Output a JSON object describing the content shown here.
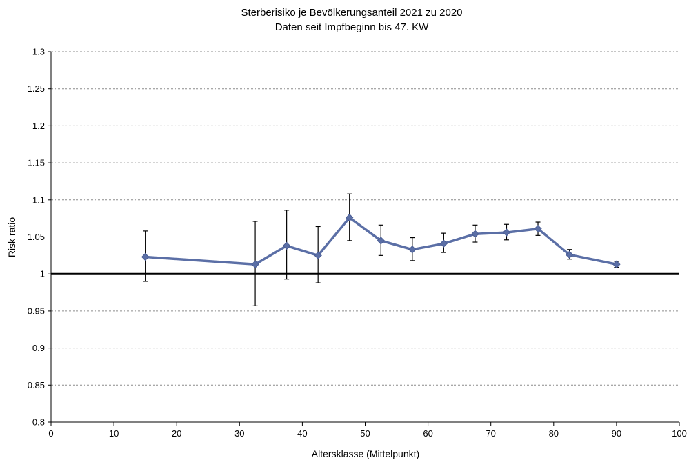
{
  "chart_data": {
    "type": "line",
    "title": "Sterberisiko je Bevölkerungsanteil 2021 zu 2020",
    "subtitle": "Daten seit Impfbeginn bis 47. KW",
    "xlabel": "Altersklasse (Mittelpunkt)",
    "ylabel": "Risk ratio",
    "xlim": [
      0,
      100
    ],
    "ylim": [
      0.8,
      1.3
    ],
    "x_ticks": [
      "0",
      "10",
      "20",
      "30",
      "40",
      "50",
      "60",
      "70",
      "80",
      "90",
      "100"
    ],
    "y_ticks": [
      "0.8",
      "0.85",
      "0.9",
      "0.95",
      "1",
      "1.05",
      "1.1",
      "1.15",
      "1.2",
      "1.25",
      "1.3"
    ],
    "grid": true,
    "reference_line": 1,
    "series": [
      {
        "x": [
          15,
          32.5,
          37.5,
          42.5,
          47.5,
          52.5,
          57.5,
          62.5,
          67.5,
          72.5,
          77.5,
          82.5,
          90
        ],
        "y": [
          1.023,
          1.013,
          1.038,
          1.025,
          1.076,
          1.045,
          1.033,
          1.041,
          1.054,
          1.056,
          1.061,
          1.026,
          1.013
        ],
        "error_low": [
          0.99,
          0.957,
          0.993,
          0.988,
          1.045,
          1.025,
          1.018,
          1.029,
          1.043,
          1.046,
          1.052,
          1.02,
          1.009
        ],
        "error_high": [
          1.058,
          1.071,
          1.086,
          1.064,
          1.108,
          1.066,
          1.049,
          1.055,
          1.066,
          1.067,
          1.07,
          1.033,
          1.017
        ],
        "color": "#5b6fa6"
      }
    ]
  }
}
